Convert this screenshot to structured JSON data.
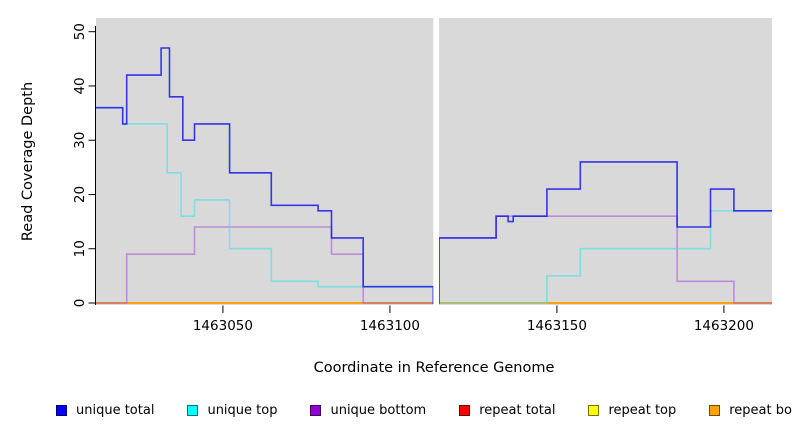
{
  "chart_data": {
    "type": "line",
    "subtype": "step-post",
    "title": "",
    "xlabel": "Coordinate in Reference Genome",
    "ylabel": "Read Coverage Depth",
    "xlim": [
      1463012,
      1463214.4
    ],
    "ylim": [
      0,
      50
    ],
    "grid": false,
    "plot_background": "#D9D9D9",
    "axis_color": "#000000",
    "x_ticks": [
      "1463050",
      "1463100",
      "1463150",
      "1463200"
    ],
    "x_tick_values": [
      1463050,
      1463100,
      1463150,
      1463200
    ],
    "y_ticks": [
      "0",
      "10",
      "20",
      "30",
      "40",
      "50"
    ],
    "y_tick_values": [
      0,
      10,
      20,
      30,
      40,
      50
    ],
    "gap": {
      "from": 1463113.0,
      "to": 1463114.7,
      "color": "#ffffff"
    },
    "series": [
      {
        "name": "repeat-total",
        "label": "repeat total",
        "line_color": "#EE0000",
        "opacity": 1,
        "steps": [
          [
            1463012,
            0
          ]
        ],
        "end": 1463214.4
      },
      {
        "name": "repeat-top",
        "label": "repeat top",
        "line_color": "#FFE800",
        "opacity": 1,
        "steps": [
          [
            1463012,
            0
          ]
        ],
        "end": 1463214.4
      },
      {
        "name": "repeat-bottom",
        "label": "repeat bottom",
        "line_color": "#FF9F00",
        "opacity": 1,
        "steps": [
          [
            1463012,
            0
          ]
        ],
        "end": 1463214.4
      },
      {
        "name": "unique-bottom",
        "label": "unique bottom",
        "line_color": "#A44FD9",
        "opacity": 0.55,
        "steps": [
          [
            1463012,
            0
          ],
          [
            1463021.2,
            9
          ],
          [
            1463041.5,
            14
          ],
          [
            1463082.5,
            9
          ],
          [
            1463092,
            0
          ],
          [
            1463114.7,
            12
          ],
          [
            1463131.8,
            16
          ],
          [
            1463186,
            4
          ],
          [
            1463203,
            0
          ]
        ],
        "end": 1463214.4
      },
      {
        "name": "unique-top",
        "label": "unique top",
        "line_color": "#45E0E8",
        "opacity": 0.6,
        "steps": [
          [
            1463012,
            36
          ],
          [
            1463020,
            33
          ],
          [
            1463033.3,
            24
          ],
          [
            1463037.5,
            16
          ],
          [
            1463041.5,
            19
          ],
          [
            1463052,
            10
          ],
          [
            1463064.5,
            4
          ],
          [
            1463078.5,
            3
          ],
          [
            1463113,
            0
          ],
          [
            1463147,
            5
          ],
          [
            1463157,
            10
          ],
          [
            1463196,
            17
          ]
        ],
        "end": 1463214.4
      },
      {
        "name": "unique-total",
        "label": "unique total",
        "line_color": "#1F1FE8",
        "opacity": 0.88,
        "steps": [
          [
            1463012,
            36
          ],
          [
            1463020,
            33
          ],
          [
            1463021.2,
            42
          ],
          [
            1463031.5,
            47
          ],
          [
            1463034,
            38
          ],
          [
            1463038,
            30
          ],
          [
            1463041.5,
            33
          ],
          [
            1463052,
            24
          ],
          [
            1463064.5,
            18
          ],
          [
            1463078.5,
            17
          ],
          [
            1463082.5,
            12
          ],
          [
            1463092,
            3
          ],
          [
            1463113,
            0
          ],
          [
            1463114.7,
            12
          ],
          [
            1463131.8,
            16
          ],
          [
            1463135.4,
            15
          ],
          [
            1463136.9,
            16
          ],
          [
            1463147,
            21
          ],
          [
            1463157,
            26
          ],
          [
            1463186,
            14
          ],
          [
            1463196,
            21
          ],
          [
            1463203,
            17
          ]
        ],
        "end": 1463214.4
      }
    ],
    "legend": {
      "position": "bottom",
      "items": [
        {
          "label": "unique total",
          "color": "#0000FF"
        },
        {
          "label": "unique top",
          "color": "#00FFFF"
        },
        {
          "label": "unique bottom",
          "color": "#9400D3"
        },
        {
          "label": "repeat total",
          "color": "#FF0000"
        },
        {
          "label": "repeat top",
          "color": "#FFFF00"
        },
        {
          "label": "repeat bottom",
          "color": "#FFA500"
        }
      ]
    }
  }
}
